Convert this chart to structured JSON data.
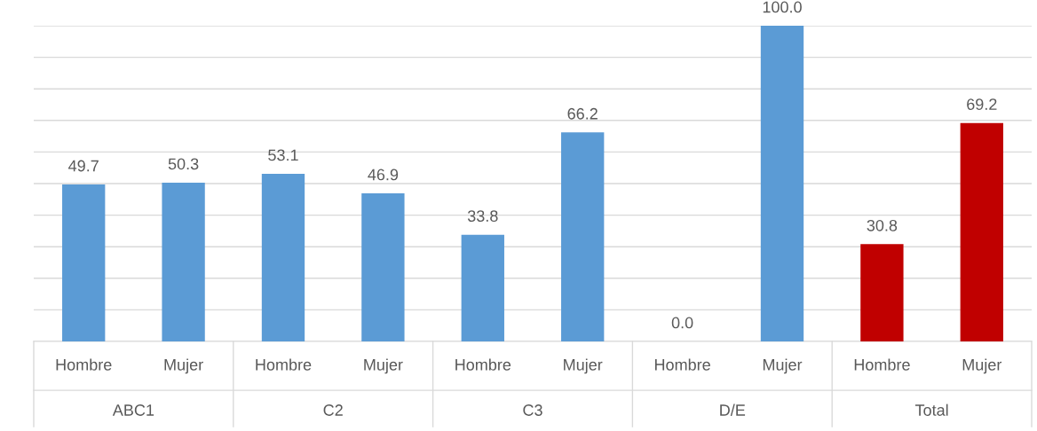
{
  "chart_data": {
    "type": "bar",
    "categories": [
      "Hombre",
      "Mujer",
      "Hombre",
      "Mujer",
      "Hombre",
      "Mujer",
      "Hombre",
      "Mujer",
      "Hombre",
      "Mujer"
    ],
    "values": [
      49.7,
      50.3,
      53.1,
      46.9,
      33.8,
      66.2,
      0.0,
      100.0,
      30.8,
      69.2
    ],
    "value_labels": [
      "49.7",
      "50.3",
      "53.1",
      "46.9",
      "33.8",
      "66.2",
      "0.0",
      "100.0",
      "30.8",
      "69.2"
    ],
    "colors": [
      "#5b9bd5",
      "#5b9bd5",
      "#5b9bd5",
      "#5b9bd5",
      "#5b9bd5",
      "#5b9bd5",
      "#5b9bd5",
      "#5b9bd5",
      "#c00000",
      "#c00000"
    ],
    "annotations": [
      "ABC1",
      "C2",
      "C3",
      "D/E",
      "Total"
    ],
    "ylim": [
      0,
      100
    ],
    "yticks": [
      {
        "value": 0,
        "label": null
      },
      {
        "value": 10,
        "label": null
      },
      {
        "value": 20,
        "label": null
      },
      {
        "value": 30,
        "label": null
      },
      {
        "value": 40,
        "label": null
      },
      {
        "value": 50,
        "label": null
      },
      {
        "value": 60,
        "label": null
      },
      {
        "value": 70,
        "label": null
      },
      {
        "value": 80,
        "label": null
      },
      {
        "value": 90,
        "label": null
      },
      {
        "value": 100,
        "label": null
      }
    ],
    "grid": "y",
    "tick_labels": "x",
    "legend": false
  }
}
